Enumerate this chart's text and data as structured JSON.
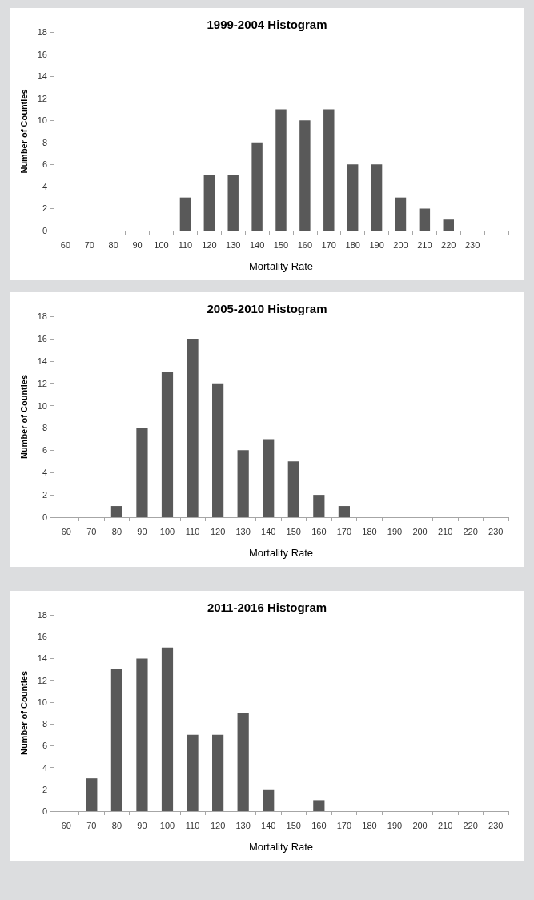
{
  "chart_data": [
    {
      "type": "bar",
      "title": "1999-2004 Histogram",
      "xlabel": "Mortality Rate",
      "ylabel": "Number of Counties",
      "categories": [
        "60",
        "70",
        "80",
        "90",
        "100",
        "110",
        "120",
        "130",
        "140",
        "150",
        "160",
        "170",
        "180",
        "190",
        "200",
        "210",
        "220",
        "230",
        null
      ],
      "values": [
        0,
        0,
        0,
        0,
        0,
        3,
        5,
        5,
        8,
        11,
        10,
        11,
        6,
        6,
        3,
        2,
        1,
        0,
        0
      ],
      "color": "#595959",
      "ylim": [
        0,
        18
      ],
      "yticks": [
        0,
        2,
        4,
        6,
        8,
        10,
        12,
        14,
        16,
        18
      ],
      "grid": false
    },
    {
      "type": "bar",
      "title": "2005-2010 Histogram",
      "xlabel": "Mortality Rate",
      "ylabel": "Number of Counties",
      "categories": [
        "60",
        "70",
        "80",
        "90",
        "100",
        "110",
        "120",
        "130",
        "140",
        "150",
        "160",
        "170",
        "180",
        "190",
        "200",
        "210",
        "220",
        "230"
      ],
      "values": [
        0,
        0,
        1,
        8,
        13,
        16,
        12,
        6,
        7,
        5,
        2,
        1,
        0,
        0,
        0,
        0,
        0,
        0
      ],
      "color": "#595959",
      "ylim": [
        0,
        18
      ],
      "yticks": [
        0,
        2,
        4,
        6,
        8,
        10,
        12,
        14,
        16,
        18
      ],
      "grid": false
    },
    {
      "type": "bar",
      "title": "2011-2016 Histogram",
      "xlabel": "Mortality Rate",
      "ylabel": "Number of Counties",
      "categories": [
        "60",
        "70",
        "80",
        "90",
        "100",
        "110",
        "120",
        "130",
        "140",
        "150",
        "160",
        "170",
        "180",
        "190",
        "200",
        "210",
        "220",
        "230"
      ],
      "values": [
        0,
        3,
        13,
        14,
        15,
        7,
        7,
        9,
        2,
        0,
        1,
        0,
        0,
        0,
        0,
        0,
        0,
        0
      ],
      "color": "#595959",
      "ylim": [
        0,
        18
      ],
      "yticks": [
        0,
        2,
        4,
        6,
        8,
        10,
        12,
        14,
        16,
        18
      ],
      "grid": false
    }
  ]
}
